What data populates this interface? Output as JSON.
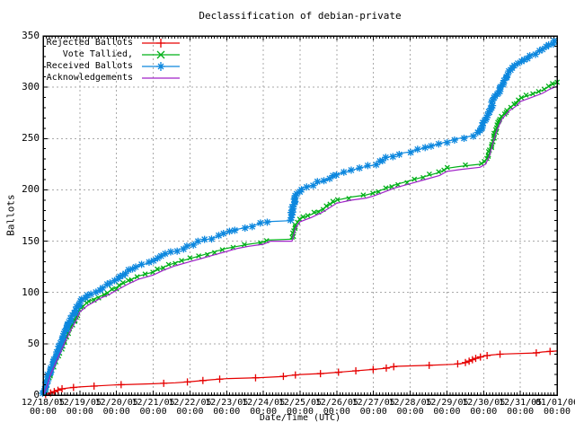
{
  "window": {
    "background": "#ffffff"
  },
  "chart_data": {
    "type": "line",
    "title": "Declassification of debian-private",
    "xlabel": "Date/Time (UTC)",
    "ylabel": "Ballots",
    "xlim_days": [
      0,
      14
    ],
    "ylim": [
      0,
      350
    ],
    "grid": true,
    "legend_position": "top-left-inside",
    "x_ticks": [
      {
        "date": "12/18/05",
        "time": "00:00"
      },
      {
        "date": "12/19/05",
        "time": "00:00"
      },
      {
        "date": "12/20/05",
        "time": "00:00"
      },
      {
        "date": "12/21/05",
        "time": "00:00"
      },
      {
        "date": "12/22/05",
        "time": "00:00"
      },
      {
        "date": "12/23/05",
        "time": "00:00"
      },
      {
        "date": "12/24/05",
        "time": "00:00"
      },
      {
        "date": "12/25/05",
        "time": "00:00"
      },
      {
        "date": "12/26/05",
        "time": "00:00"
      },
      {
        "date": "12/27/05",
        "time": "00:00"
      },
      {
        "date": "12/28/05",
        "time": "00:00"
      },
      {
        "date": "12/29/05",
        "time": "00:00"
      },
      {
        "date": "12/30/05",
        "time": "00:00"
      },
      {
        "date": "12/31/05",
        "time": "00:00"
      },
      {
        "date": "01/01/06",
        "time": "00:00"
      }
    ],
    "y_ticks": [
      0,
      50,
      100,
      150,
      200,
      250,
      300,
      350
    ],
    "colors": {
      "grid": "#aaaaaa",
      "border": "#000000",
      "text": "#000000"
    },
    "series": [
      {
        "name": "Rejected Ballots",
        "color": "#e60000",
        "marker": "plus",
        "marker_step_ballots": 1.35,
        "points": [
          [
            0,
            0
          ],
          [
            0.2,
            2
          ],
          [
            0.35,
            4
          ],
          [
            0.5,
            6
          ],
          [
            0.7,
            7
          ],
          [
            1,
            8
          ],
          [
            1.5,
            9
          ],
          [
            2,
            10
          ],
          [
            3,
            11
          ],
          [
            3.6,
            12
          ],
          [
            4,
            13
          ],
          [
            4.6,
            15
          ],
          [
            5,
            16
          ],
          [
            5.9,
            17
          ],
          [
            6.5,
            18
          ],
          [
            6.7,
            19
          ],
          [
            7,
            20
          ],
          [
            7.6,
            21
          ],
          [
            8.3,
            23
          ],
          [
            9,
            25
          ],
          [
            9.3,
            26
          ],
          [
            9.6,
            28
          ],
          [
            10.5,
            29
          ],
          [
            11.2,
            30
          ],
          [
            11.45,
            31
          ],
          [
            11.6,
            33
          ],
          [
            11.8,
            36
          ],
          [
            12,
            38
          ],
          [
            12.2,
            39
          ],
          [
            12.5,
            40
          ],
          [
            13.4,
            41
          ],
          [
            13.6,
            42
          ],
          [
            14,
            43
          ]
        ]
      },
      {
        "name": "Vote Tallied,",
        "color": "#00b018",
        "marker": "cross",
        "marker_step_ballots": 2.2,
        "points": [
          [
            0,
            0
          ],
          [
            0.1,
            10
          ],
          [
            0.2,
            22
          ],
          [
            0.3,
            30
          ],
          [
            0.45,
            42
          ],
          [
            0.6,
            55
          ],
          [
            0.75,
            66
          ],
          [
            0.9,
            76
          ],
          [
            1,
            84
          ],
          [
            1.2,
            90
          ],
          [
            1.4,
            94
          ],
          [
            1.6,
            97
          ],
          [
            1.8,
            101
          ],
          [
            2,
            105
          ],
          [
            2.3,
            111
          ],
          [
            2.6,
            116
          ],
          [
            3,
            120
          ],
          [
            3.3,
            125
          ],
          [
            3.6,
            129
          ],
          [
            4,
            133
          ],
          [
            4.3,
            136
          ],
          [
            4.6,
            139
          ],
          [
            5,
            143
          ],
          [
            5.3,
            145
          ],
          [
            5.6,
            147
          ],
          [
            6,
            149
          ],
          [
            6.1,
            151
          ],
          [
            6.78,
            152
          ],
          [
            6.88,
            166
          ],
          [
            7,
            172
          ],
          [
            7.3,
            176
          ],
          [
            7.6,
            181
          ],
          [
            8,
            190
          ],
          [
            8.4,
            193
          ],
          [
            8.8,
            195
          ],
          [
            9,
            197
          ],
          [
            9.3,
            201
          ],
          [
            9.6,
            205
          ],
          [
            10,
            209
          ],
          [
            10.4,
            213
          ],
          [
            10.8,
            217
          ],
          [
            11,
            221
          ],
          [
            11.4,
            223
          ],
          [
            11.9,
            225
          ],
          [
            12.05,
            228
          ],
          [
            12.15,
            235
          ],
          [
            12.25,
            248
          ],
          [
            12.35,
            260
          ],
          [
            12.5,
            272
          ],
          [
            12.7,
            280
          ],
          [
            12.9,
            285
          ],
          [
            13,
            289
          ],
          [
            13.3,
            293
          ],
          [
            13.6,
            297
          ],
          [
            13.8,
            301
          ],
          [
            14,
            305
          ]
        ]
      },
      {
        "name": "Received Ballots",
        "color": "#0c87de",
        "marker": "star",
        "marker_step_ballots": 2.0,
        "points": [
          [
            0,
            0
          ],
          [
            0.05,
            6
          ],
          [
            0.15,
            20
          ],
          [
            0.25,
            30
          ],
          [
            0.35,
            38
          ],
          [
            0.5,
            52
          ],
          [
            0.6,
            62
          ],
          [
            0.7,
            70
          ],
          [
            0.85,
            80
          ],
          [
            1,
            90
          ],
          [
            1.1,
            94
          ],
          [
            1.3,
            99
          ],
          [
            1.5,
            102
          ],
          [
            1.7,
            106
          ],
          [
            1.9,
            110
          ],
          [
            2,
            112
          ],
          [
            2.2,
            118
          ],
          [
            2.4,
            122
          ],
          [
            2.6,
            126
          ],
          [
            2.9,
            129
          ],
          [
            3,
            131
          ],
          [
            3.2,
            135
          ],
          [
            3.5,
            139
          ],
          [
            3.8,
            143
          ],
          [
            4,
            146
          ],
          [
            4.2,
            149
          ],
          [
            4.5,
            152
          ],
          [
            4.8,
            155
          ],
          [
            5,
            158
          ],
          [
            5.2,
            161
          ],
          [
            5.5,
            163
          ],
          [
            5.8,
            166
          ],
          [
            6,
            168
          ],
          [
            6.1,
            169
          ],
          [
            6.75,
            170
          ],
          [
            6.8,
            182
          ],
          [
            6.88,
            196
          ],
          [
            7,
            200
          ],
          [
            7.05,
            202
          ],
          [
            7.3,
            204
          ],
          [
            7.5,
            207
          ],
          [
            7.8,
            211
          ],
          [
            8,
            215
          ],
          [
            8.3,
            218
          ],
          [
            8.5,
            220
          ],
          [
            8.7,
            222
          ],
          [
            9,
            224
          ],
          [
            9.2,
            228
          ],
          [
            9.4,
            232
          ],
          [
            9.6,
            234
          ],
          [
            9.8,
            236
          ],
          [
            10,
            237
          ],
          [
            10.3,
            240
          ],
          [
            10.6,
            243
          ],
          [
            11,
            247
          ],
          [
            11.3,
            250
          ],
          [
            11.6,
            252
          ],
          [
            11.8,
            254
          ],
          [
            11.9,
            258
          ],
          [
            12,
            265
          ],
          [
            12.1,
            272
          ],
          [
            12.2,
            280
          ],
          [
            12.3,
            290
          ],
          [
            12.45,
            298
          ],
          [
            12.6,
            310
          ],
          [
            12.75,
            318
          ],
          [
            12.9,
            322
          ],
          [
            13,
            324
          ],
          [
            13.2,
            330
          ],
          [
            13.4,
            333
          ],
          [
            13.6,
            337
          ],
          [
            13.8,
            341
          ],
          [
            13.95,
            345
          ],
          [
            14,
            346
          ]
        ]
      },
      {
        "name": "Acknowledgements",
        "color": "#a020c8",
        "marker": "none",
        "marker_step_ballots": 0,
        "points": [
          [
            0,
            0
          ],
          [
            0.1,
            8
          ],
          [
            0.2,
            20
          ],
          [
            0.3,
            28
          ],
          [
            0.45,
            40
          ],
          [
            0.6,
            52
          ],
          [
            0.75,
            63
          ],
          [
            0.9,
            73
          ],
          [
            1,
            81
          ],
          [
            1.2,
            87
          ],
          [
            1.4,
            91
          ],
          [
            1.6,
            95
          ],
          [
            1.8,
            98
          ],
          [
            2,
            102
          ],
          [
            2.3,
            108
          ],
          [
            2.6,
            113
          ],
          [
            3,
            117
          ],
          [
            3.3,
            122
          ],
          [
            3.6,
            126
          ],
          [
            4,
            130
          ],
          [
            4.3,
            133
          ],
          [
            4.6,
            136
          ],
          [
            5,
            140
          ],
          [
            5.3,
            143
          ],
          [
            5.6,
            145
          ],
          [
            6,
            147
          ],
          [
            6.2,
            150
          ],
          [
            6.78,
            150
          ],
          [
            6.88,
            163
          ],
          [
            7,
            169
          ],
          [
            7.3,
            173
          ],
          [
            7.6,
            178
          ],
          [
            8,
            187
          ],
          [
            8.4,
            190
          ],
          [
            8.8,
            192
          ],
          [
            9,
            194
          ],
          [
            9.3,
            198
          ],
          [
            9.6,
            202
          ],
          [
            10,
            206
          ],
          [
            10.4,
            210
          ],
          [
            10.8,
            214
          ],
          [
            11,
            218
          ],
          [
            11.4,
            220
          ],
          [
            11.9,
            222
          ],
          [
            12.05,
            225
          ],
          [
            12.15,
            232
          ],
          [
            12.25,
            245
          ],
          [
            12.35,
            257
          ],
          [
            12.5,
            269
          ],
          [
            12.7,
            277
          ],
          [
            12.9,
            282
          ],
          [
            13,
            286
          ],
          [
            13.3,
            290
          ],
          [
            13.6,
            294
          ],
          [
            13.8,
            298
          ],
          [
            14,
            301
          ]
        ]
      }
    ]
  }
}
